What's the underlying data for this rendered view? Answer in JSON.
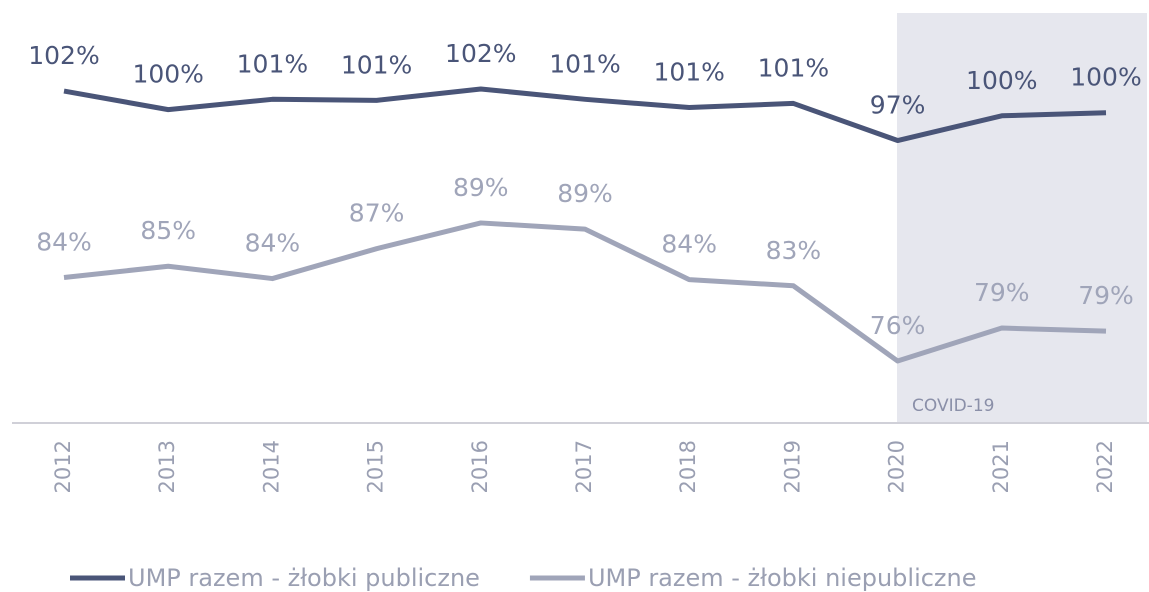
{
  "chart_data": {
    "type": "line",
    "categories": [
      "2012",
      "2013",
      "2014",
      "2015",
      "2016",
      "2017",
      "2018",
      "2019",
      "2020",
      "2021",
      "2022"
    ],
    "series": [
      {
        "name": "UMP razem - żłobki publiczne",
        "color": "#4a5578",
        "values": [
          102.2,
          100.4,
          101.4,
          101.3,
          102.4,
          101.4,
          100.6,
          101.0,
          97.4,
          99.8,
          100.1
        ],
        "value_labels": [
          "102%",
          "100%",
          "101%",
          "101%",
          "102%",
          "101%",
          "101%",
          "101%",
          "97%",
          "100%",
          "100%"
        ]
      },
      {
        "name": "UMP razem - żłobki niepubliczne",
        "color": "#a0a5b9",
        "values": [
          84.1,
          85.2,
          84.0,
          86.9,
          89.4,
          88.8,
          83.9,
          83.3,
          76.0,
          79.2,
          78.9
        ],
        "value_labels": [
          "84%",
          "85%",
          "84%",
          "87%",
          "89%",
          "89%",
          "84%",
          "83%",
          "76%",
          "79%",
          "79%"
        ]
      }
    ],
    "annotation": "COVID-19",
    "legend": "bottom"
  }
}
